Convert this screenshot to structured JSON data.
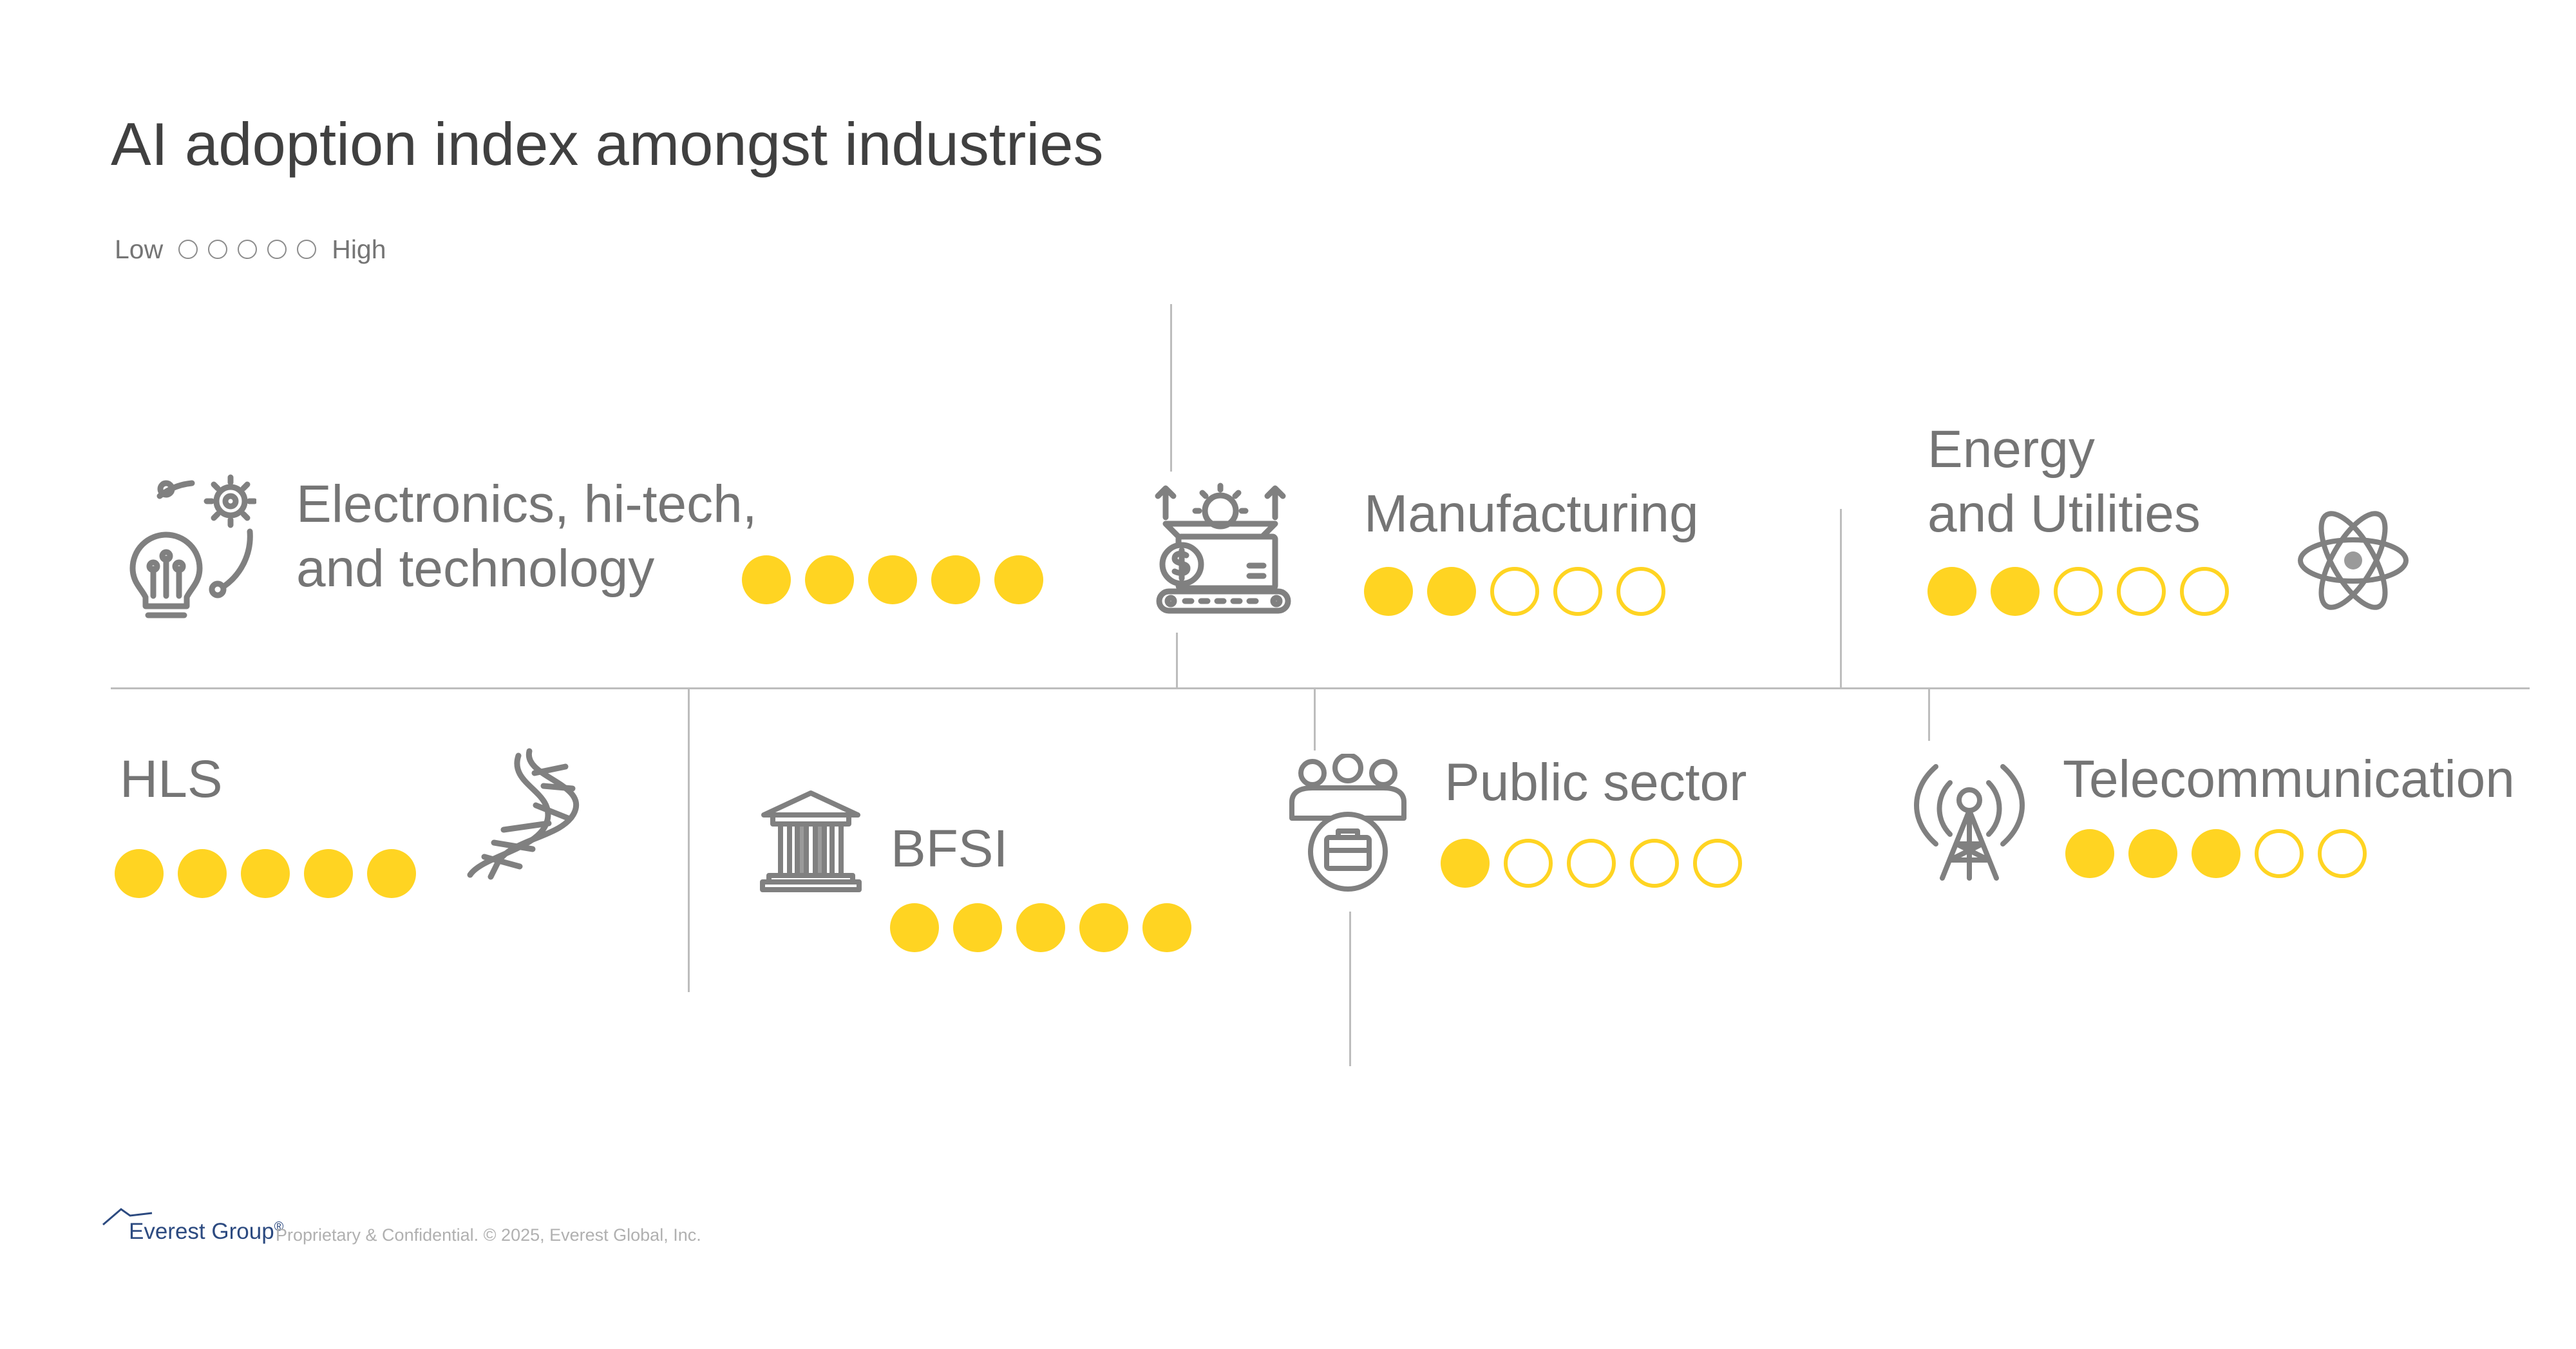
{
  "title": "AI adoption index amongst industries",
  "legend": {
    "low": "Low",
    "high": "High",
    "circle_count": 5
  },
  "colors": {
    "accent": "#FFD422",
    "text": "#757575",
    "title": "#404040",
    "line": "#bdbdbd"
  },
  "industries": [
    {
      "id": "electronics",
      "label_line1": "Electronics, hi-tech,",
      "label_line2": "and technology",
      "score": 5,
      "max": 5,
      "icon": "lightbulb-gear-icon"
    },
    {
      "id": "manufacturing",
      "label_line1": "Manufacturing",
      "score": 2,
      "max": 5,
      "icon": "factory-conveyor-icon"
    },
    {
      "id": "energy",
      "label_line1": "Energy",
      "label_line2": "and Utilities",
      "score": 2,
      "max": 5,
      "icon": "atom-icon"
    },
    {
      "id": "hls",
      "label_line1": "HLS",
      "score": 5,
      "max": 5,
      "icon": "dna-icon"
    },
    {
      "id": "bfsi",
      "label_line1": "BFSI",
      "score": 5,
      "max": 5,
      "icon": "bank-icon"
    },
    {
      "id": "public",
      "label_line1": "Public sector",
      "score": 1,
      "max": 5,
      "icon": "people-briefcase-icon"
    },
    {
      "id": "telecom",
      "label_line1": "Telecommunication",
      "score": 3,
      "max": 5,
      "icon": "antenna-tower-icon"
    }
  ],
  "footer": {
    "logo": "Everest Group",
    "registered": "®",
    "text": "Proprietary & Confidential. © 2025, Everest Global, Inc."
  }
}
